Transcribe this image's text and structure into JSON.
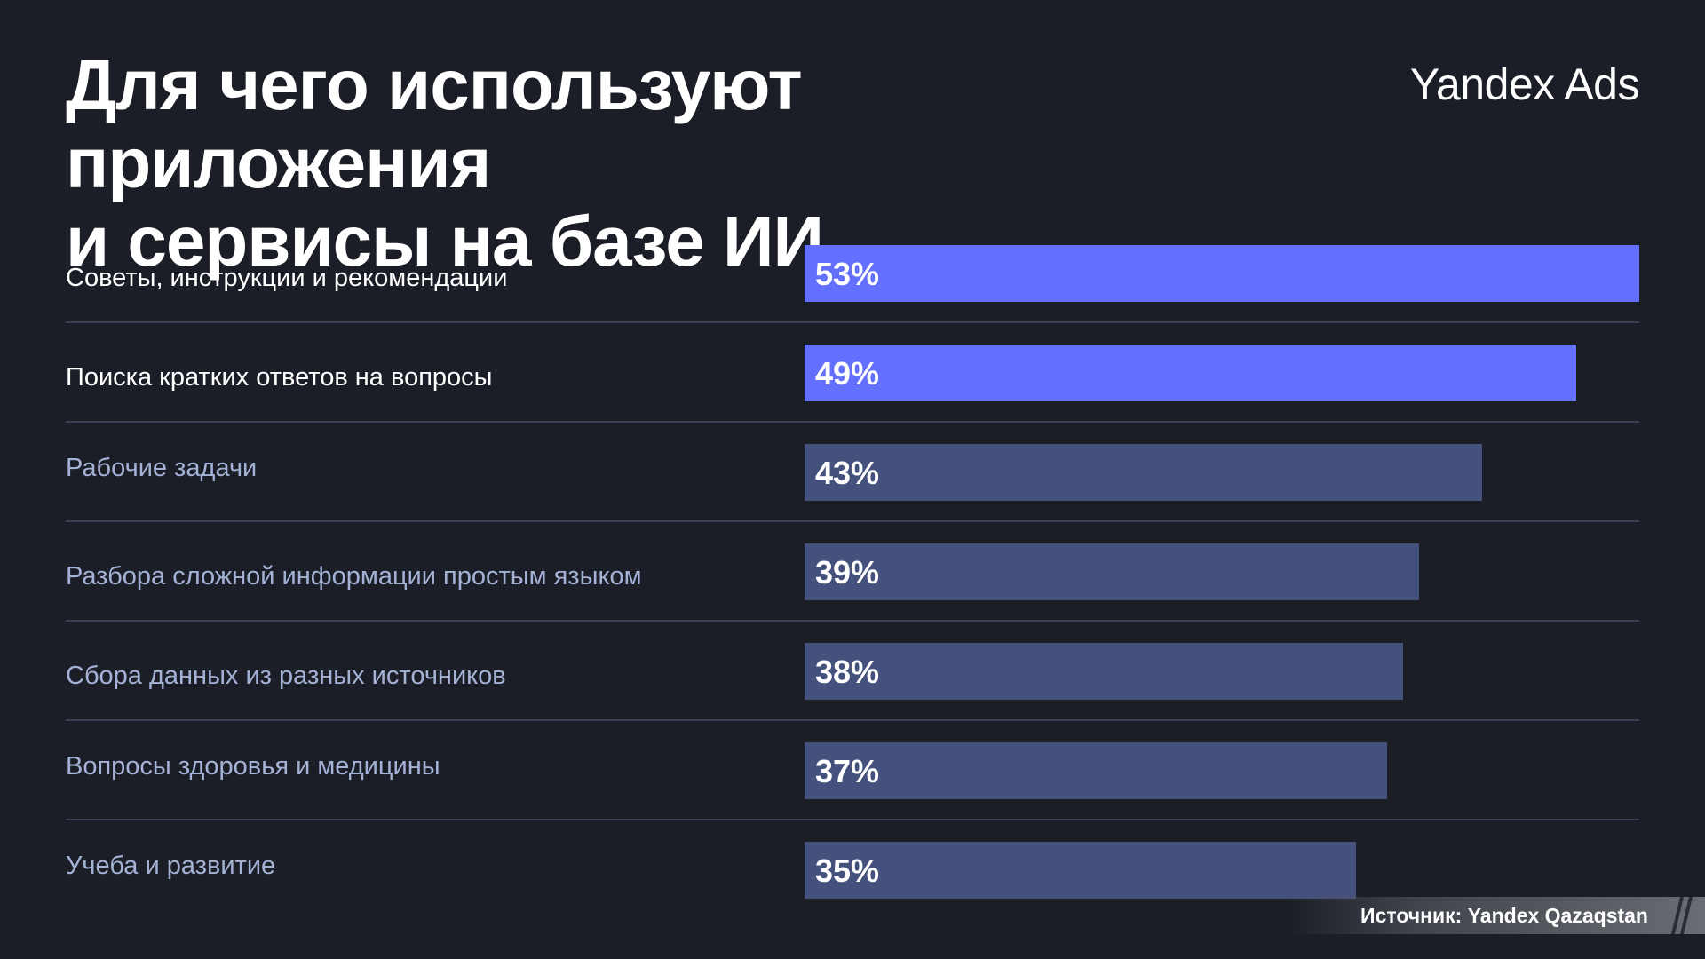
{
  "title": {
    "line1": "Для чего используют приложения",
    "line2": "и сервисы на базе ИИ"
  },
  "brand": "Yandex Ads",
  "source": "Источник: Yandex Qazaqstan",
  "colors": {
    "background": "#1b1e27",
    "highlight_bar": "#6370fd",
    "regular_bar": "#45517d",
    "highlight_label": "#ffffff",
    "regular_label": "#a4b2d6",
    "divider": "#3a4058"
  },
  "chart_data": {
    "type": "bar",
    "orientation": "horizontal",
    "categories": [
      "Советы, инструкции и рекомендации",
      "Поиска кратких ответов на вопросы",
      "Рабочие задачи",
      "Разбора сложной информации простым языком",
      "Сбора данных из разных источников",
      "Вопросы здоровья и медицины",
      "Учеба и развитие"
    ],
    "values": [
      53,
      49,
      43,
      39,
      38,
      37,
      35
    ],
    "labels": [
      "53%",
      "49%",
      "43%",
      "39%",
      "38%",
      "37%",
      "35%"
    ],
    "highlighted": [
      true,
      true,
      false,
      false,
      false,
      false,
      false
    ],
    "unit": "%",
    "xlim": [
      0,
      53
    ],
    "grid": false,
    "legend": "none"
  }
}
